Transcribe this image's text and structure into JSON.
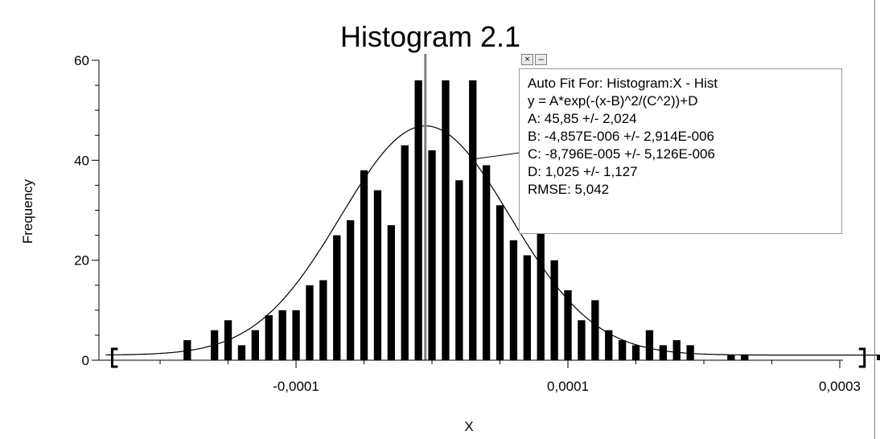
{
  "chart_data": {
    "type": "bar",
    "title": "Histogram 2.1",
    "xlabel": "X",
    "ylabel": "Frequency",
    "xlim": [
      -0.000245,
      0.0003
    ],
    "ylim": [
      0,
      60
    ],
    "x_ticks": [
      {
        "value": -0.0001,
        "label": "-0,0001"
      },
      {
        "value": 0.0001,
        "label": "0,0001"
      },
      {
        "value": 0.0003,
        "label": "0,0003"
      }
    ],
    "y_ticks": [
      {
        "value": 0,
        "label": "0"
      },
      {
        "value": 20,
        "label": "20"
      },
      {
        "value": 40,
        "label": "40"
      },
      {
        "value": 60,
        "label": "60"
      }
    ],
    "bin_width": 1e-05,
    "bins": [
      {
        "x": -0.00018,
        "y": 4
      },
      {
        "x": -0.00016,
        "y": 6
      },
      {
        "x": -0.00015,
        "y": 8
      },
      {
        "x": -0.00014,
        "y": 3
      },
      {
        "x": -0.00013,
        "y": 6
      },
      {
        "x": -0.00012,
        "y": 9
      },
      {
        "x": -0.00011,
        "y": 10
      },
      {
        "x": -0.0001,
        "y": 10
      },
      {
        "x": -9e-05,
        "y": 15
      },
      {
        "x": -8e-05,
        "y": 16
      },
      {
        "x": -7e-05,
        "y": 25
      },
      {
        "x": -6e-05,
        "y": 28
      },
      {
        "x": -5e-05,
        "y": 38
      },
      {
        "x": -4e-05,
        "y": 34
      },
      {
        "x": -3e-05,
        "y": 27
      },
      {
        "x": -2e-05,
        "y": 43
      },
      {
        "x": -1e-05,
        "y": 56
      },
      {
        "x": 0,
        "y": 42
      },
      {
        "x": 1e-05,
        "y": 56
      },
      {
        "x": 2e-05,
        "y": 36
      },
      {
        "x": 3e-05,
        "y": 56
      },
      {
        "x": 4e-05,
        "y": 39
      },
      {
        "x": 5e-05,
        "y": 31
      },
      {
        "x": 6e-05,
        "y": 24
      },
      {
        "x": 7e-05,
        "y": 21
      },
      {
        "x": 8e-05,
        "y": 27
      },
      {
        "x": 9e-05,
        "y": 20
      },
      {
        "x": 0.0001,
        "y": 14
      },
      {
        "x": 0.00011,
        "y": 8
      },
      {
        "x": 0.00012,
        "y": 12
      },
      {
        "x": 0.00013,
        "y": 6
      },
      {
        "x": 0.00014,
        "y": 4
      },
      {
        "x": 0.00015,
        "y": 3
      },
      {
        "x": 0.00016,
        "y": 6
      },
      {
        "x": 0.00017,
        "y": 3
      },
      {
        "x": 0.00018,
        "y": 4
      },
      {
        "x": 0.00019,
        "y": 3
      },
      {
        "x": 0.00022,
        "y": 1
      },
      {
        "x": 0.00023,
        "y": 1
      },
      {
        "x": 0.00033,
        "y": 1
      }
    ],
    "fit": {
      "function": "gaussian",
      "A": 45.85,
      "B": -4.857e-06,
      "C": -8.796e-05,
      "D": 1.025
    },
    "center_marker_x": -4.857e-06,
    "range_brackets": [
      -0.00024,
      0.00033
    ],
    "grid": false,
    "legend": "none"
  },
  "fit_box": {
    "lines": [
      "Auto Fit For:  Histogram:X - Hist",
      "y = A*exp(-(x-B)^2/(C^2))+D",
      "A: 45,85 +/- 2,024",
      "B: -4,857E-006 +/- 2,914E-006",
      "C: -8,796E-005 +/- 5,126E-006",
      "D: 1,025 +/- 1,127",
      "RMSE: 5,042"
    ],
    "close_label": "×",
    "minimize_label": "–"
  }
}
